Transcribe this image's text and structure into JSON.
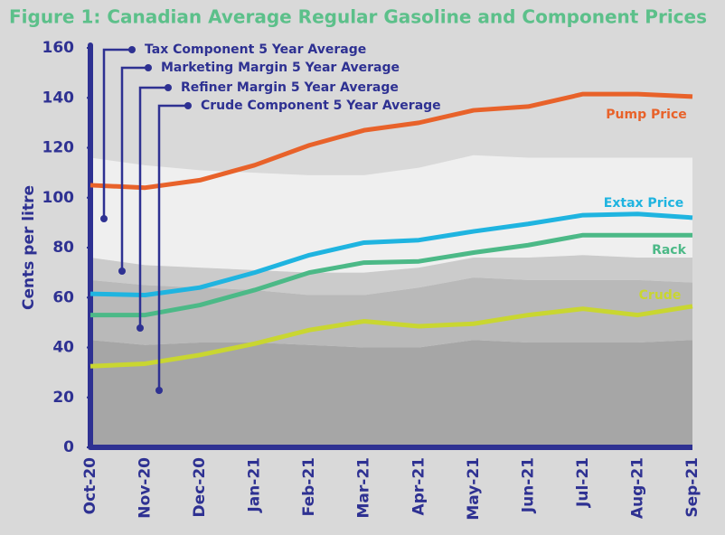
{
  "chart_data": {
    "type": "line",
    "title": "Figure 1: Canadian Average Regular Gasoline and Component Prices",
    "y_label": "Cents per litre",
    "categories": [
      "Oct-20",
      "Nov-20",
      "Dec-20",
      "Jan-21",
      "Feb-21",
      "Mar-21",
      "Apr-21",
      "May-21",
      "Jun-21",
      "Jul-21",
      "Aug-21",
      "Sep-21"
    ],
    "ylim": [
      0,
      160
    ],
    "yticks": [
      0,
      20,
      40,
      60,
      80,
      100,
      120,
      140,
      160
    ],
    "series": [
      {
        "name": "Pump Price",
        "color": "#e8622a",
        "values": [
          105,
          104,
          107,
          113,
          121,
          127,
          130,
          135,
          136.5,
          141.5,
          141.5,
          140.5
        ]
      },
      {
        "name": "Extax Price",
        "color": "#1fb4e0",
        "values": [
          61.5,
          61,
          64,
          70,
          77,
          82,
          83,
          86.5,
          89.5,
          93,
          93.5,
          92
        ]
      },
      {
        "name": "Rack",
        "color": "#4cb987",
        "values": [
          53,
          53,
          57,
          63,
          70,
          74,
          74.5,
          78,
          81,
          85,
          85,
          85
        ]
      },
      {
        "name": "Crude",
        "color": "#c9d631",
        "values": [
          32.5,
          33.5,
          37,
          41.5,
          47,
          50.5,
          48.5,
          49.5,
          53,
          55.5,
          53,
          56.5
        ]
      }
    ],
    "stacked_areas": [
      {
        "name": "Crude Component 5 Year Average",
        "color": "#a6a6a6",
        "values": [
          43,
          41,
          42,
          42,
          41,
          40,
          40,
          43,
          42,
          42,
          42,
          43
        ]
      },
      {
        "name": "Refiner Margin 5 Year Average",
        "color": "#b9b9b9",
        "values": [
          24,
          24,
          22,
          21,
          20,
          21,
          24,
          25,
          25,
          25,
          25,
          23
        ]
      },
      {
        "name": "Marketing Margin 5 Year Average",
        "color": "#cbcbcb",
        "values": [
          9,
          8,
          8,
          8,
          9,
          9,
          8,
          8,
          9,
          10,
          9,
          10
        ]
      },
      {
        "name": "Tax Component 5 Year Average",
        "color": "#efefef",
        "values": [
          40,
          40,
          39,
          39,
          39,
          39,
          40,
          41,
          40,
          39,
          40,
          40
        ]
      }
    ]
  }
}
